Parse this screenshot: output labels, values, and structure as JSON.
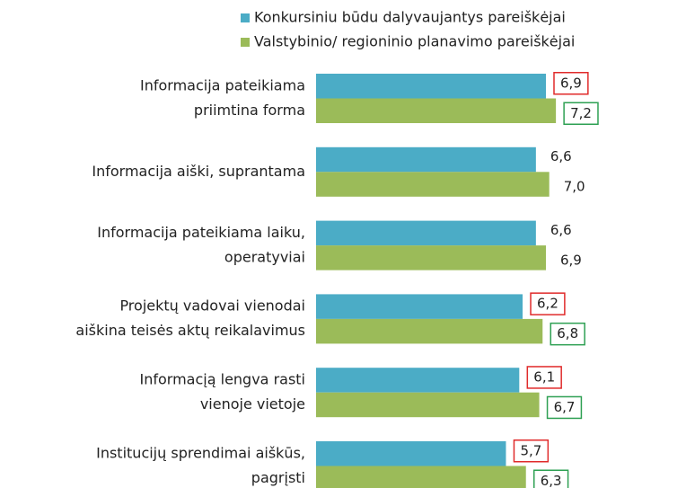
{
  "chart_data": {
    "type": "barh",
    "categories": [
      [
        "Informacija pateikiama",
        "priimtina forma"
      ],
      [
        "Informacija aiški, suprantama"
      ],
      [
        "Informacija pateikiama laiku,",
        "operatyviai"
      ],
      [
        "Projektų vadovai vienodai",
        "aiškina teisės aktų reikalavimus"
      ],
      [
        "Informacįą lengva rasti",
        "vienoje vietoje"
      ],
      [
        "Institucijų sprendimai aiškūs,",
        "pagrįsti"
      ]
    ],
    "series": [
      {
        "name": "Konkursiniu būdu dalyvaujantys pareiškėjai",
        "color": "#4bacc6",
        "highlight_color": "#e02b2b",
        "values": [
          6.9,
          6.6,
          6.6,
          6.2,
          6.1,
          5.7
        ],
        "value_labels": [
          "6,9",
          "6,6",
          "6,6",
          "6,2",
          "6,1",
          "5,7"
        ],
        "highlighted": [
          true,
          false,
          false,
          true,
          true,
          true
        ]
      },
      {
        "name": "Valstybinio/ regioninio planavimo pareiškėjai",
        "color": "#9bbb59",
        "highlight_color": "#2ea053",
        "values": [
          7.2,
          7.0,
          6.9,
          6.8,
          6.7,
          6.3
        ],
        "value_labels": [
          "7,2",
          "7,0",
          "6,9",
          "6,8",
          "6,7",
          "6,3"
        ],
        "highlighted": [
          true,
          false,
          false,
          true,
          true,
          true
        ]
      }
    ],
    "legend": "top-right"
  }
}
